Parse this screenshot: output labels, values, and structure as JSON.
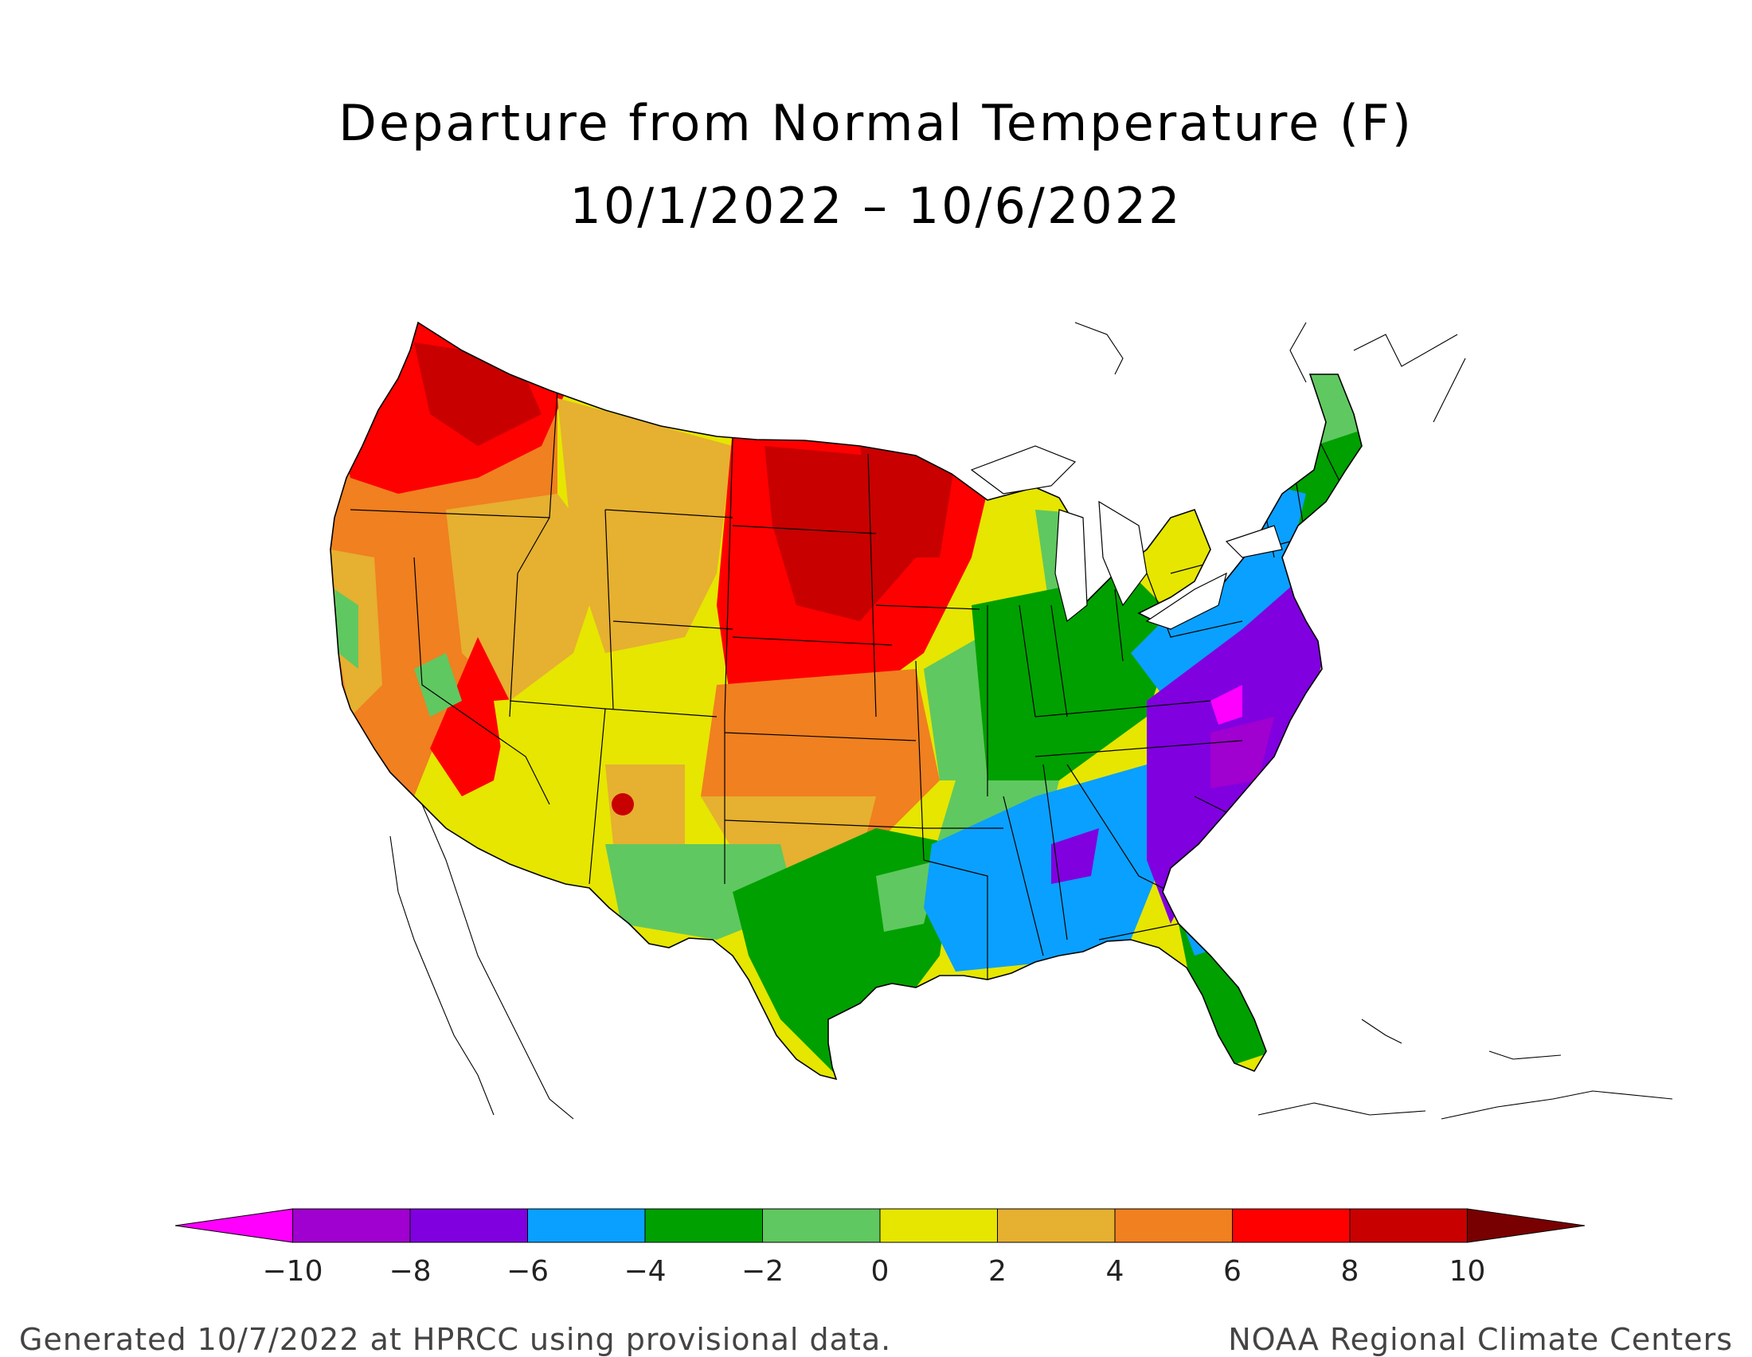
{
  "title": {
    "line1": "Departure from Normal Temperature (F)",
    "line2": "10/1/2022 – 10/6/2022"
  },
  "legend": {
    "ticks": [
      "−10",
      "−8",
      "−6",
      "−4",
      "−2",
      "0",
      "2",
      "4",
      "6",
      "8",
      "10"
    ],
    "colors": [
      "#ff00ff",
      "#a000d0",
      "#8000e0",
      "#0aa0ff",
      "#00a000",
      "#60c860",
      "#e6e600",
      "#e6b030",
      "#f08020",
      "#ff0000",
      "#c80000",
      "#780000"
    ],
    "bins": [
      {
        "range": "< -10",
        "color": "#ff00ff"
      },
      {
        "range": "-10 to -8",
        "color": "#a000d0"
      },
      {
        "range": "-8 to -6",
        "color": "#8000e0"
      },
      {
        "range": "-6 to -4",
        "color": "#0aa0ff"
      },
      {
        "range": "-4 to -2",
        "color": "#00a000"
      },
      {
        "range": "-2 to 0",
        "color": "#60c860"
      },
      {
        "range": "0 to 2",
        "color": "#e6e600"
      },
      {
        "range": "2 to 4",
        "color": "#e6b030"
      },
      {
        "range": "4 to 6",
        "color": "#f08020"
      },
      {
        "range": "6 to 8",
        "color": "#ff0000"
      },
      {
        "range": "8 to 10",
        "color": "#c80000"
      },
      {
        "range": "> 10",
        "color": "#780000"
      }
    ]
  },
  "footer": {
    "left": "Generated 10/7/2022 at HPRCC using provisional data.",
    "right": "NOAA Regional Climate Centers"
  }
}
